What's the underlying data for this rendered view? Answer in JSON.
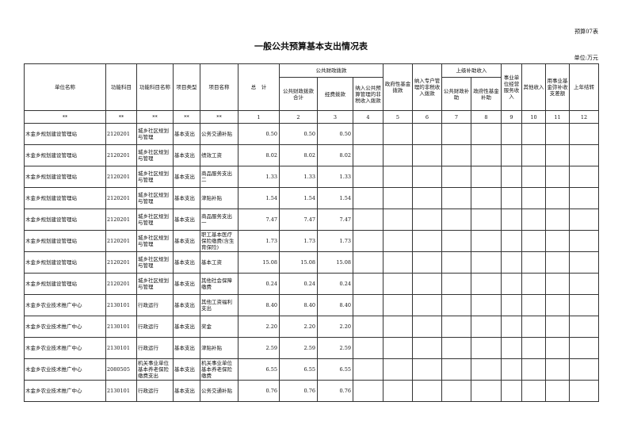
{
  "form_no": "预算07表",
  "title": "一般公共预算基本支出情况表",
  "unit": "单位:万元",
  "headers": {
    "unit_name": "单位名称",
    "func_code": "功能科目",
    "func_name": "功能科目名称",
    "proj_type": "项目类型",
    "proj_name": "项目名称",
    "total": "总　计",
    "public_finance": "公共财政拨款",
    "pf_total": "公共财政拨款合计",
    "pf_funds": "经费拨款",
    "pf_nontax": "纳入公共预算管理的非税收入拨款",
    "gov_fund": "政府性基金拨款",
    "special_nontax": "纳入专户管理的非税收入拨款",
    "superior": "上级补助收入",
    "sup_pf": "公共财政补助",
    "sup_gov": "政府性基金补助",
    "business": "事业单位经营服务收入",
    "other": "其他收入",
    "reserve": "用事业基金弥补收支差额",
    "carryover": "上年结转"
  },
  "numbers": [
    "**",
    "**",
    "**",
    "**",
    "**",
    "1",
    "2",
    "3",
    "4",
    "5",
    "6",
    "7",
    "8",
    "9",
    "10",
    "11",
    "12"
  ],
  "rows": [
    {
      "unit": "木金乡规划建设管理站",
      "code": "2120201",
      "fname": "城乡社区规划与管理",
      "type": "基本支出",
      "pname": "公务交通补贴",
      "total": "0.50",
      "pf": "0.50",
      "funds": "0.50"
    },
    {
      "unit": "木金乡规划建设管理站",
      "code": "2120201",
      "fname": "城乡社区规划与管理",
      "type": "基本支出",
      "pname": "绩效工资",
      "total": "8.02",
      "pf": "8.02",
      "funds": "8.02"
    },
    {
      "unit": "木金乡规划建设管理站",
      "code": "2120201",
      "fname": "城乡社区规划与管理",
      "type": "基本支出",
      "pname": "商品服务支出二",
      "total": "1.33",
      "pf": "1.33",
      "funds": "1.33"
    },
    {
      "unit": "木金乡规划建设管理站",
      "code": "2120201",
      "fname": "城乡社区规划与管理",
      "type": "基本支出",
      "pname": "津贴补贴",
      "total": "1.54",
      "pf": "1.54",
      "funds": "1.54"
    },
    {
      "unit": "木金乡规划建设管理站",
      "code": "2120201",
      "fname": "城乡社区规划与管理",
      "type": "基本支出",
      "pname": "商品服务支出一",
      "total": "7.47",
      "pf": "7.47",
      "funds": "7.47"
    },
    {
      "unit": "木金乡规划建设管理站",
      "code": "2120201",
      "fname": "城乡社区规划与管理",
      "type": "基本支出",
      "pname": "职工基本医疗保险缴费(含生育保险)",
      "total": "1.73",
      "pf": "1.73",
      "funds": "1.73"
    },
    {
      "unit": "木金乡规划建设管理站",
      "code": "2120201",
      "fname": "城乡社区规划与管理",
      "type": "基本支出",
      "pname": "基本工资",
      "total": "15.08",
      "pf": "15.08",
      "funds": "15.08"
    },
    {
      "unit": "木金乡规划建设管理站",
      "code": "2120201",
      "fname": "城乡社区规划与管理",
      "type": "基本支出",
      "pname": "其他社会保障缴费",
      "total": "0.24",
      "pf": "0.24",
      "funds": "0.24"
    },
    {
      "unit": "木金乡农业技术推广中心",
      "code": "2130101",
      "fname": "行政运行",
      "type": "基本支出",
      "pname": "其他工资福利支出",
      "total": "8.40",
      "pf": "8.40",
      "funds": "8.40"
    },
    {
      "unit": "木金乡农业技术推广中心",
      "code": "2130101",
      "fname": "行政运行",
      "type": "基本支出",
      "pname": "奖金",
      "total": "2.20",
      "pf": "2.20",
      "funds": "2.20"
    },
    {
      "unit": "木金乡农业技术推广中心",
      "code": "2130101",
      "fname": "行政运行",
      "type": "基本支出",
      "pname": "津贴补贴",
      "total": "2.59",
      "pf": "2.59",
      "funds": "2.59"
    },
    {
      "unit": "木金乡农业技术推广中心",
      "code": "2080505",
      "fname": "机关事业单位基本养老保险缴费支出",
      "type": "基本支出",
      "pname": "机关事业单位基本养老保险缴费",
      "total": "6.55",
      "pf": "6.55",
      "funds": "6.55"
    },
    {
      "unit": "木金乡农业技术推广中心",
      "code": "2130101",
      "fname": "行政运行",
      "type": "基本支出",
      "pname": "公务交通补贴",
      "total": "0.76",
      "pf": "0.76",
      "funds": "0.76"
    }
  ]
}
